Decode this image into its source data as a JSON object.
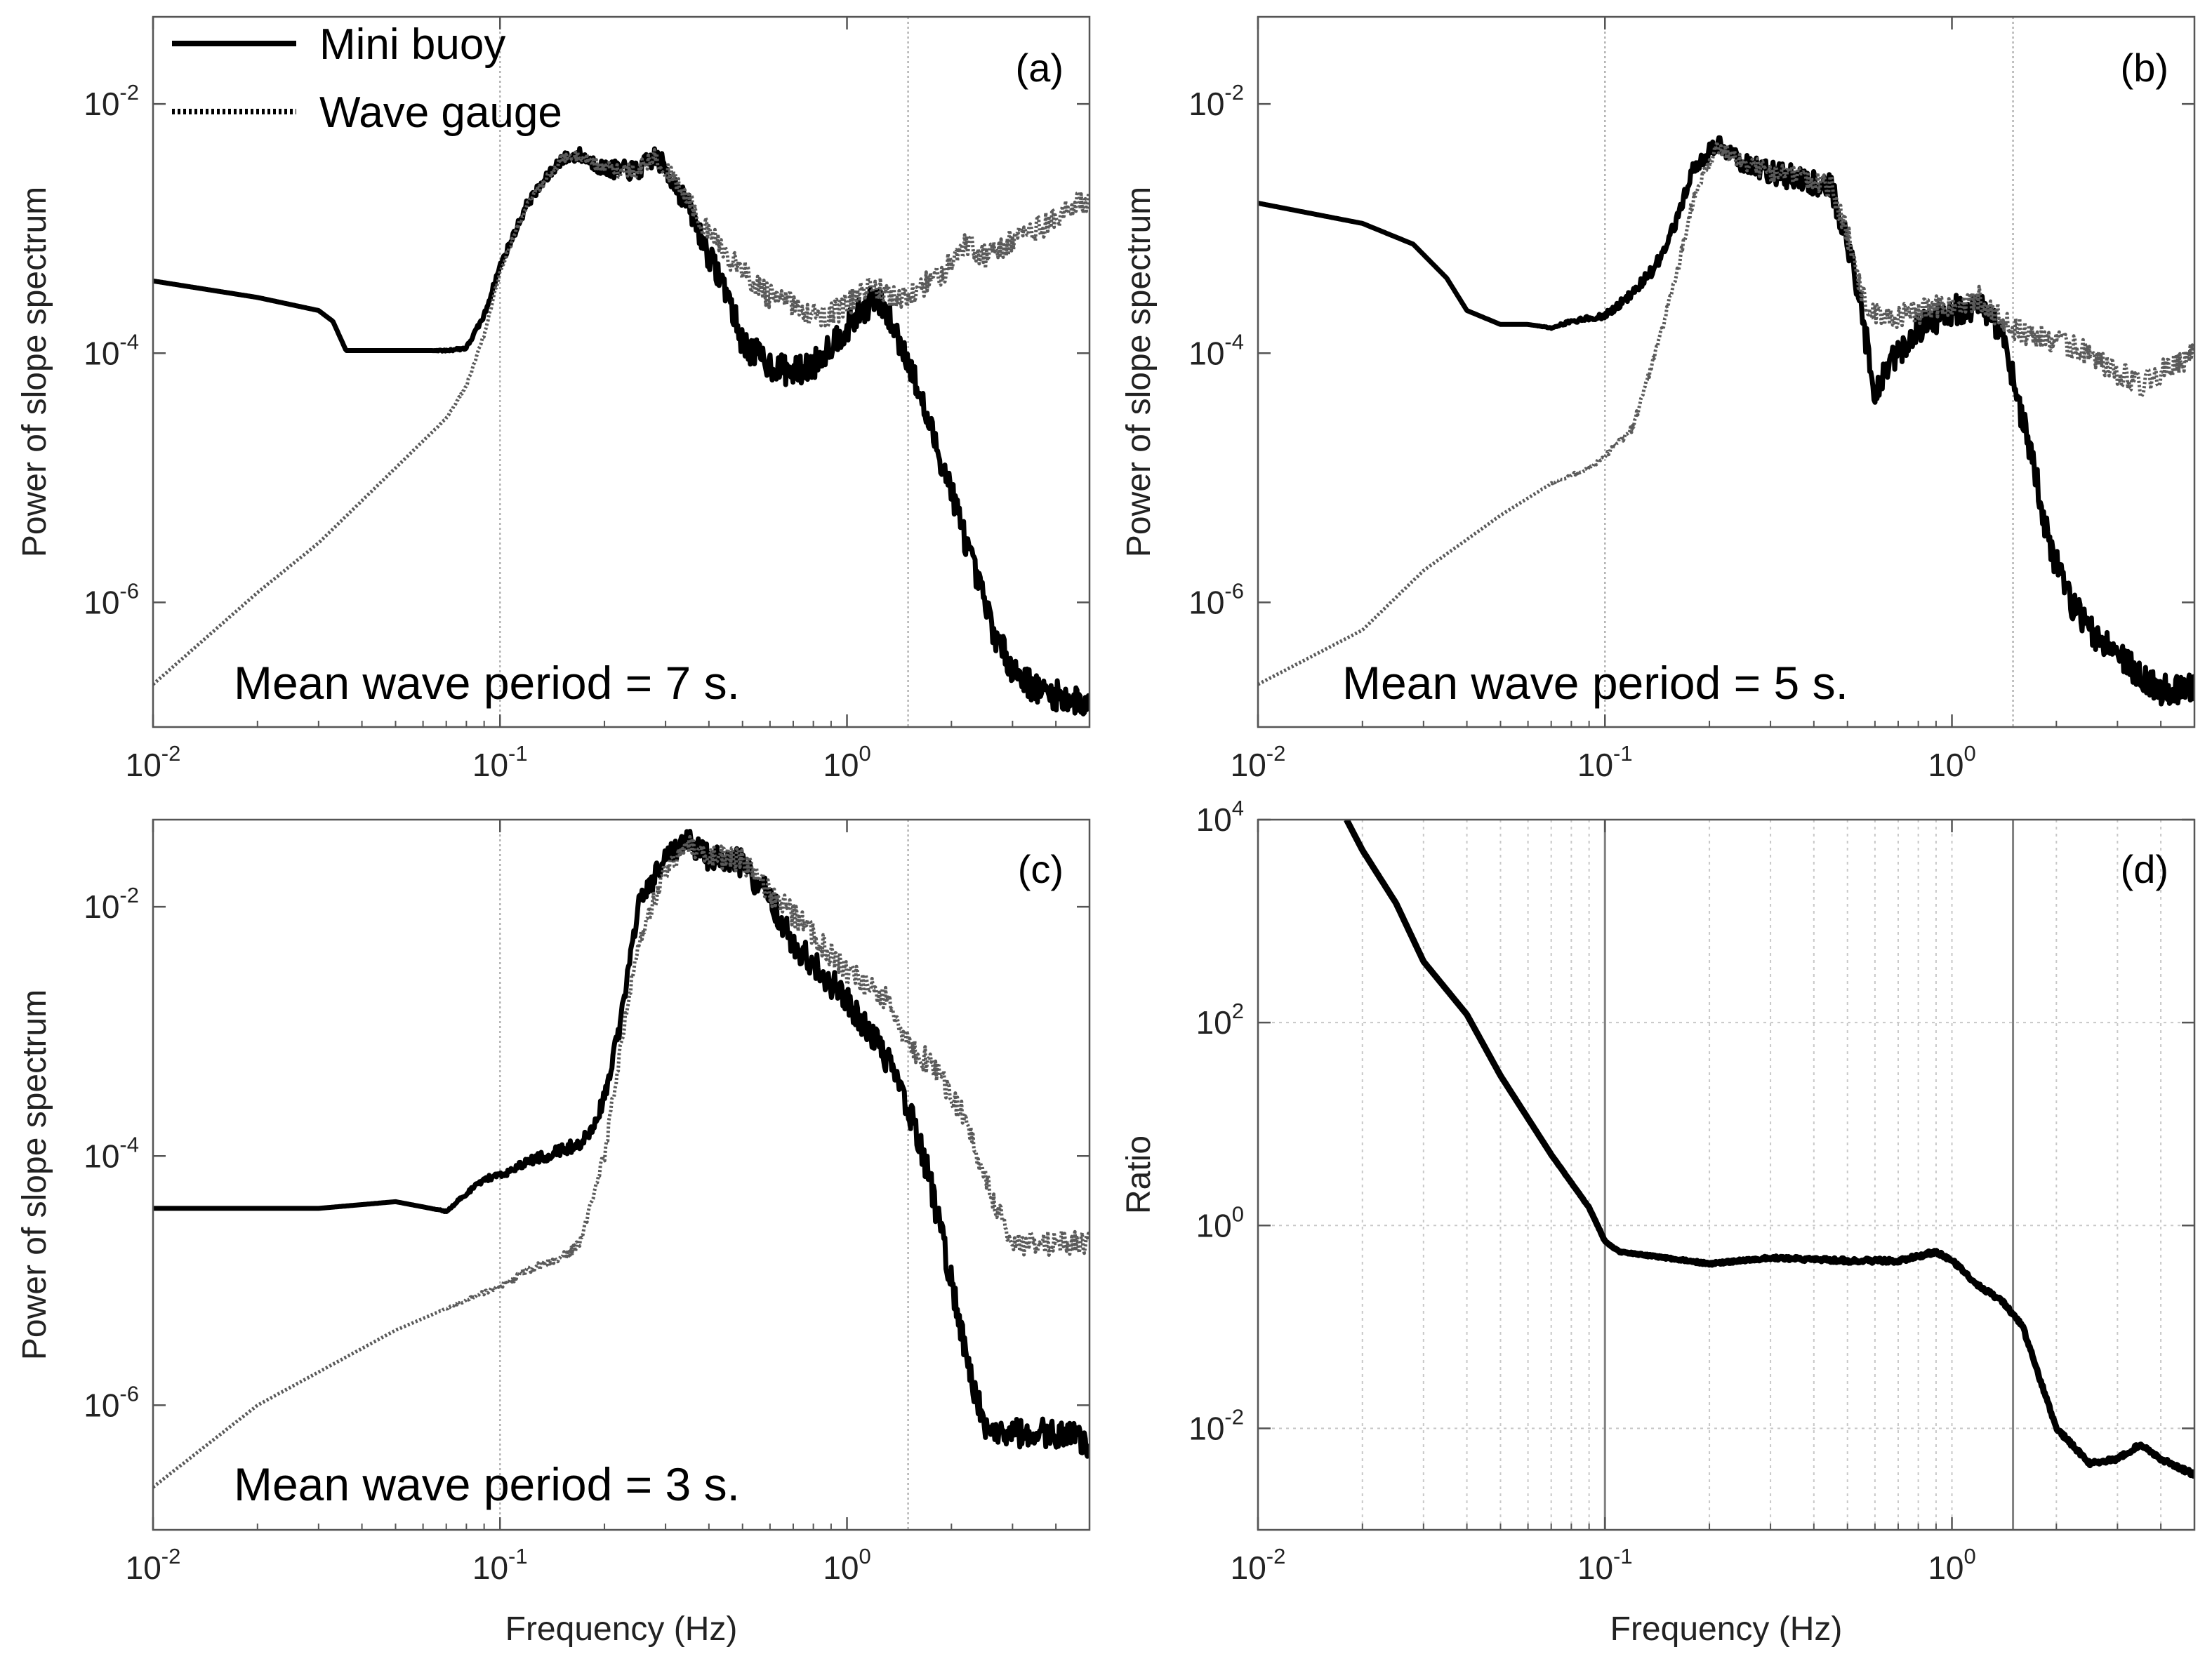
{
  "chart_data": [
    {
      "panel": "(a)",
      "type": "line",
      "scale": "log-log",
      "xlim": [
        0.01,
        5
      ],
      "ylim": [
        1e-07,
        0.05
      ],
      "xticks": [
        "10-2",
        "10-1",
        "100"
      ],
      "yticks": [
        "10-6",
        "10-4",
        "10-2"
      ],
      "ytick_values": [
        1e-06,
        0.0001,
        0.01
      ],
      "ylabel": "Power of slope spectrum",
      "xlabel": "",
      "annotation": "Mean wave period = 7 s.",
      "vlines": [
        0.1,
        1.5
      ],
      "legend": [
        {
          "label": "Mini buoy",
          "style": "solid"
        },
        {
          "label": "Wave gauge",
          "style": "dotted"
        }
      ],
      "series": [
        {
          "name": "Mini buoy",
          "style": "solid",
          "noise": 0.12,
          "points": [
            [
              0.01,
              0.00038
            ],
            [
              0.02,
              0.00028
            ],
            [
              0.03,
              0.00022
            ],
            [
              0.033,
              0.00018
            ],
            [
              0.036,
              0.000105
            ],
            [
              0.05,
              0.000105
            ],
            [
              0.07,
              0.000105
            ],
            [
              0.08,
              0.00011
            ],
            [
              0.09,
              0.0002
            ],
            [
              0.1,
              0.0005
            ],
            [
              0.12,
              0.0016
            ],
            [
              0.15,
              0.0036
            ],
            [
              0.17,
              0.0039
            ],
            [
              0.2,
              0.003
            ],
            [
              0.25,
              0.0029
            ],
            [
              0.28,
              0.0038
            ],
            [
              0.3,
              0.003
            ],
            [
              0.35,
              0.0015
            ],
            [
              0.4,
              0.0006
            ],
            [
              0.45,
              0.00032
            ],
            [
              0.5,
              0.00012
            ],
            [
              0.6,
              8e-05
            ],
            [
              0.7,
              7e-05
            ],
            [
              0.8,
              8e-05
            ],
            [
              0.9,
              0.00012
            ],
            [
              1.0,
              0.00016
            ],
            [
              1.2,
              0.00028
            ],
            [
              1.3,
              0.00021
            ],
            [
              1.5,
              9e-05
            ],
            [
              1.7,
              3e-05
            ],
            [
              2.0,
              8e-06
            ],
            [
              2.3,
              2e-06
            ],
            [
              2.7,
              5e-07
            ],
            [
              3.0,
              3e-07
            ],
            [
              3.5,
              2e-07
            ],
            [
              4.0,
              1.8e-07
            ],
            [
              5.0,
              1.5e-07
            ]
          ]
        },
        {
          "name": "Wave gauge",
          "style": "dotted",
          "noise": 0.1,
          "points": [
            [
              0.01,
              2.2e-07
            ],
            [
              0.02,
              1.2e-06
            ],
            [
              0.03,
              3e-06
            ],
            [
              0.05,
              1.2e-05
            ],
            [
              0.07,
              3e-05
            ],
            [
              0.08,
              5.5e-05
            ],
            [
              0.09,
              0.00014
            ],
            [
              0.1,
              0.00045
            ],
            [
              0.12,
              0.0016
            ],
            [
              0.15,
              0.0036
            ],
            [
              0.17,
              0.0039
            ],
            [
              0.2,
              0.003
            ],
            [
              0.25,
              0.0029
            ],
            [
              0.28,
              0.0038
            ],
            [
              0.3,
              0.003
            ],
            [
              0.35,
              0.0017
            ],
            [
              0.4,
              0.0009
            ],
            [
              0.5,
              0.00045
            ],
            [
              0.6,
              0.00028
            ],
            [
              0.7,
              0.00025
            ],
            [
              0.8,
              0.0002
            ],
            [
              0.9,
              0.0002
            ],
            [
              1.0,
              0.00025
            ],
            [
              1.2,
              0.00035
            ],
            [
              1.4,
              0.00026
            ],
            [
              1.6,
              0.00032
            ],
            [
              1.9,
              0.00045
            ],
            [
              2.2,
              0.0008
            ],
            [
              2.5,
              0.0006
            ],
            [
              3.0,
              0.0008
            ],
            [
              4.0,
              0.0012
            ],
            [
              5.0,
              0.0018
            ]
          ]
        }
      ]
    },
    {
      "panel": "(b)",
      "type": "line",
      "scale": "log-log",
      "xlim": [
        0.01,
        5
      ],
      "ylim": [
        1e-07,
        0.05
      ],
      "xticks": [
        "10-2",
        "10-1",
        "100"
      ],
      "yticks": [
        "10-6",
        "10-4",
        "10-2"
      ],
      "ytick_values": [
        1e-06,
        0.0001,
        0.01
      ],
      "ylabel": "Power of slope spectrum",
      "xlabel": "",
      "annotation": "Mean wave period = 5 s.",
      "vlines": [
        0.1,
        1.5
      ],
      "series": [
        {
          "name": "Mini buoy",
          "style": "solid",
          "noise": 0.12,
          "points": [
            [
              0.01,
              0.0016
            ],
            [
              0.02,
              0.0011
            ],
            [
              0.028,
              0.00075
            ],
            [
              0.035,
              0.0004
            ],
            [
              0.04,
              0.00022
            ],
            [
              0.05,
              0.00017
            ],
            [
              0.06,
              0.00017
            ],
            [
              0.07,
              0.00016
            ],
            [
              0.08,
              0.00018
            ],
            [
              0.1,
              0.0002
            ],
            [
              0.12,
              0.0003
            ],
            [
              0.14,
              0.0005
            ],
            [
              0.16,
              0.0011
            ],
            [
              0.18,
              0.003
            ],
            [
              0.21,
              0.0048
            ],
            [
              0.24,
              0.0036
            ],
            [
              0.3,
              0.0028
            ],
            [
              0.4,
              0.0024
            ],
            [
              0.45,
              0.0021
            ],
            [
              0.5,
              0.0008
            ],
            [
              0.55,
              0.0002
            ],
            [
              0.6,
              5e-05
            ],
            [
              0.7,
              0.0001
            ],
            [
              0.8,
              0.00016
            ],
            [
              1.0,
              0.00022
            ],
            [
              1.2,
              0.00024
            ],
            [
              1.4,
              0.00015
            ],
            [
              1.5,
              6e-05
            ],
            [
              1.7,
              1.5e-05
            ],
            [
              1.9,
              3e-06
            ],
            [
              2.2,
              1e-06
            ],
            [
              2.5,
              6e-07
            ],
            [
              3.0,
              4e-07
            ],
            [
              3.5,
              2.5e-07
            ],
            [
              4.0,
              2e-07
            ],
            [
              5.0,
              2e-07
            ]
          ]
        },
        {
          "name": "Wave gauge",
          "style": "dotted",
          "noise": 0.1,
          "points": [
            [
              0.01,
              2.2e-07
            ],
            [
              0.02,
              6e-07
            ],
            [
              0.03,
              1.8e-06
            ],
            [
              0.05,
              5e-06
            ],
            [
              0.07,
              9e-06
            ],
            [
              0.09,
              1.2e-05
            ],
            [
              0.1,
              1.5e-05
            ],
            [
              0.12,
              2.5e-05
            ],
            [
              0.14,
              0.0001
            ],
            [
              0.16,
              0.0004
            ],
            [
              0.18,
              0.0018
            ],
            [
              0.21,
              0.0045
            ],
            [
              0.24,
              0.0036
            ],
            [
              0.3,
              0.0028
            ],
            [
              0.4,
              0.0024
            ],
            [
              0.45,
              0.0021
            ],
            [
              0.5,
              0.0009
            ],
            [
              0.55,
              0.0003
            ],
            [
              0.6,
              0.0002
            ],
            [
              0.7,
              0.0002
            ],
            [
              0.9,
              0.00023
            ],
            [
              1.2,
              0.00028
            ],
            [
              1.5,
              0.00016
            ],
            [
              2.0,
              0.00012
            ],
            [
              2.5,
              0.0001
            ],
            [
              3.0,
              7e-05
            ],
            [
              3.5,
              5.5e-05
            ],
            [
              4.0,
              7e-05
            ],
            [
              5.0,
              0.0001
            ]
          ]
        }
      ]
    },
    {
      "panel": "(c)",
      "type": "line",
      "scale": "log-log",
      "xlim": [
        0.01,
        5
      ],
      "ylim": [
        1e-07,
        0.05
      ],
      "xticks": [
        "10-2",
        "10-1",
        "100"
      ],
      "yticks": [
        "10-6",
        "10-4",
        "10-2"
      ],
      "ytick_values": [
        1e-06,
        0.0001,
        0.01
      ],
      "ylabel": "Power of slope spectrum",
      "xlabel": "Frequency (Hz)",
      "annotation": "Mean wave period = 3 s.",
      "vlines": [
        0.1,
        1.5
      ],
      "series": [
        {
          "name": "Mini buoy",
          "style": "solid",
          "noise": 0.12,
          "points": [
            [
              0.01,
              3.8e-05
            ],
            [
              0.03,
              3.8e-05
            ],
            [
              0.05,
              4.3e-05
            ],
            [
              0.07,
              3.6e-05
            ],
            [
              0.08,
              5e-05
            ],
            [
              0.09,
              6.5e-05
            ],
            [
              0.1,
              7e-05
            ],
            [
              0.12,
              9e-05
            ],
            [
              0.15,
              0.00011
            ],
            [
              0.18,
              0.00014
            ],
            [
              0.2,
              0.0003
            ],
            [
              0.22,
              0.001
            ],
            [
              0.25,
              0.01
            ],
            [
              0.3,
              0.025
            ],
            [
              0.35,
              0.033
            ],
            [
              0.4,
              0.025
            ],
            [
              0.5,
              0.022
            ],
            [
              0.6,
              0.012
            ],
            [
              0.7,
              0.005
            ],
            [
              0.8,
              0.0035
            ],
            [
              1.0,
              0.0018
            ],
            [
              1.3,
              0.0006
            ],
            [
              1.5,
              0.00025
            ],
            [
              1.7,
              8e-05
            ],
            [
              2.0,
              1e-05
            ],
            [
              2.3,
              1.5e-06
            ],
            [
              2.5,
              7e-07
            ],
            [
              3.0,
              6e-07
            ],
            [
              4.0,
              6e-07
            ],
            [
              5.0,
              5e-07
            ]
          ]
        },
        {
          "name": "Wave gauge",
          "style": "dotted",
          "noise": 0.1,
          "points": [
            [
              0.01,
              2.2e-07
            ],
            [
              0.02,
              1e-06
            ],
            [
              0.05,
              4e-06
            ],
            [
              0.08,
              7e-06
            ],
            [
              0.1,
              9e-06
            ],
            [
              0.12,
              1.2e-05
            ],
            [
              0.15,
              1.5e-05
            ],
            [
              0.17,
              2e-05
            ],
            [
              0.2,
              0.0001
            ],
            [
              0.22,
              0.0006
            ],
            [
              0.25,
              0.005
            ],
            [
              0.3,
              0.02
            ],
            [
              0.35,
              0.032
            ],
            [
              0.4,
              0.026
            ],
            [
              0.5,
              0.023
            ],
            [
              0.6,
              0.013
            ],
            [
              0.8,
              0.006
            ],
            [
              1.0,
              0.003
            ],
            [
              1.3,
              0.0018
            ],
            [
              1.5,
              0.0008
            ],
            [
              1.8,
              0.0005
            ],
            [
              2.2,
              0.0002
            ],
            [
              2.6,
              5e-05
            ],
            [
              3.0,
              2e-05
            ],
            [
              5.0,
              2e-05
            ]
          ]
        }
      ]
    },
    {
      "panel": "(d)",
      "type": "line",
      "scale": "log-log",
      "xlim": [
        0.01,
        5
      ],
      "ylim": [
        0.001,
        10000.0
      ],
      "xticks": [
        "10-2",
        "10-1",
        "100"
      ],
      "yticks": [
        "10-2",
        "100",
        "102",
        "104"
      ],
      "ytick_values": [
        0.01,
        1,
        100.0,
        10000.0
      ],
      "ylabel": "Ratio",
      "xlabel": "Frequency (Hz)",
      "vlines": [
        0.1,
        1.5
      ],
      "grid": true,
      "series": [
        {
          "name": "Ratio",
          "style": "solid",
          "noise": 0.02,
          "points": [
            [
              0.018,
              10000.0
            ],
            [
              0.02,
              5000
            ],
            [
              0.025,
              1500
            ],
            [
              0.03,
              400
            ],
            [
              0.04,
              120
            ],
            [
              0.05,
              30
            ],
            [
              0.07,
              5
            ],
            [
              0.09,
              1.5
            ],
            [
              0.1,
              0.7
            ],
            [
              0.11,
              0.55
            ],
            [
              0.15,
              0.48
            ],
            [
              0.2,
              0.42
            ],
            [
              0.3,
              0.48
            ],
            [
              0.5,
              0.45
            ],
            [
              0.7,
              0.45
            ],
            [
              0.8,
              0.5
            ],
            [
              0.9,
              0.55
            ],
            [
              1.0,
              0.45
            ],
            [
              1.2,
              0.25
            ],
            [
              1.4,
              0.18
            ],
            [
              1.6,
              0.1
            ],
            [
              2.0,
              0.01
            ],
            [
              2.5,
              0.0045
            ],
            [
              3.0,
              0.005
            ],
            [
              3.5,
              0.007
            ],
            [
              4.0,
              0.005
            ],
            [
              5.0,
              0.0035
            ]
          ]
        }
      ]
    }
  ]
}
